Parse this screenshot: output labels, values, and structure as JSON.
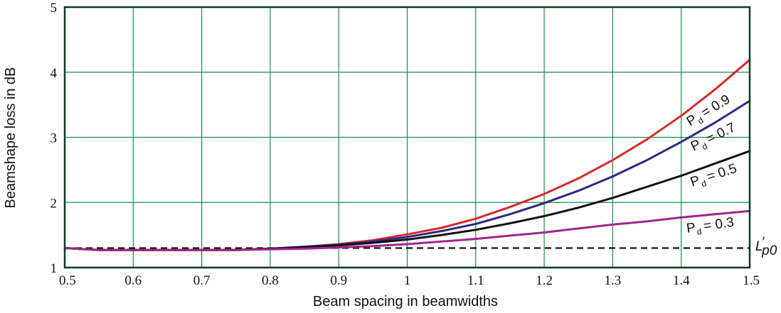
{
  "chart_data": {
    "type": "line",
    "title": "",
    "xlabel": "Beam spacing in beamwidths",
    "ylabel": "Beamshape loss in dB",
    "xlim": [
      0.5,
      1.5
    ],
    "ylim": [
      1,
      5
    ],
    "xticks": [
      "0.5",
      "0.6",
      "0.7",
      "0.8",
      "0.9",
      "1",
      "1.1",
      "1.2",
      "1.3",
      "1.4",
      "1.5"
    ],
    "yticks": [
      "1",
      "2",
      "3",
      "4",
      "5"
    ],
    "grid": true,
    "grid_color": "#1a8a4a",
    "frame_color": "#0e3a22",
    "x": [
      0.5,
      0.55,
      0.6,
      0.65,
      0.7,
      0.75,
      0.8,
      0.85,
      0.9,
      0.95,
      1.0,
      1.05,
      1.1,
      1.15,
      1.2,
      1.25,
      1.3,
      1.35,
      1.4,
      1.45,
      1.5
    ],
    "series": [
      {
        "name": "P",
        "sub": "d",
        "value": "= 0.9",
        "color": "#d62a2a",
        "values": [
          1.3,
          1.27,
          1.27,
          1.27,
          1.27,
          1.27,
          1.29,
          1.32,
          1.36,
          1.42,
          1.51,
          1.61,
          1.75,
          1.93,
          2.13,
          2.37,
          2.65,
          2.97,
          3.33,
          3.74,
          4.19
        ]
      },
      {
        "name": "P",
        "sub": "d",
        "value": "= 0.7",
        "color": "#2b2a86",
        "values": [
          1.3,
          1.27,
          1.27,
          1.27,
          1.27,
          1.27,
          1.29,
          1.32,
          1.35,
          1.4,
          1.47,
          1.56,
          1.67,
          1.82,
          1.99,
          2.18,
          2.4,
          2.65,
          2.93,
          3.23,
          3.56
        ]
      },
      {
        "name": "P",
        "sub": "d",
        "value": "= 0.5",
        "color": "#111111",
        "values": [
          1.3,
          1.27,
          1.27,
          1.27,
          1.27,
          1.27,
          1.29,
          1.31,
          1.34,
          1.38,
          1.43,
          1.5,
          1.58,
          1.68,
          1.79,
          1.92,
          2.07,
          2.24,
          2.41,
          2.6,
          2.79
        ]
      },
      {
        "name": "P",
        "sub": "d",
        "value": "= 0.3",
        "color": "#a3248e",
        "values": [
          1.3,
          1.27,
          1.27,
          1.27,
          1.27,
          1.27,
          1.28,
          1.29,
          1.31,
          1.33,
          1.36,
          1.4,
          1.44,
          1.49,
          1.54,
          1.6,
          1.66,
          1.71,
          1.77,
          1.82,
          1.87
        ]
      }
    ],
    "reference_line": {
      "label": "L",
      "label_prime": "′",
      "label_sub": "p0",
      "value": 1.3,
      "style": "dashed",
      "color": "#111111"
    }
  }
}
